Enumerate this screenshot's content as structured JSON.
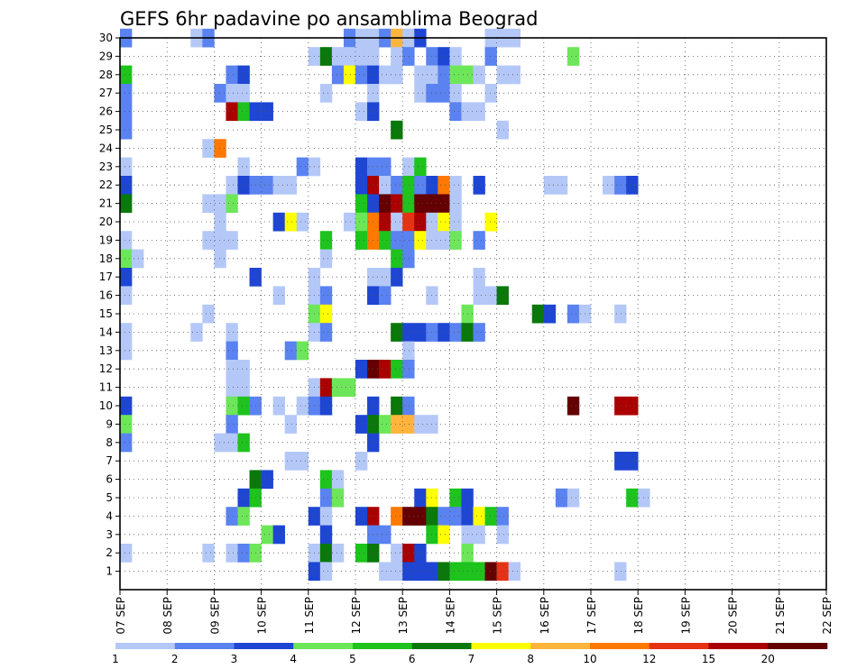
{
  "chart_data": {
    "type": "heatmap",
    "title": "GEFS 6hr padavine po ansamblima Beograd",
    "xlabel": "",
    "ylabel": "",
    "x_tick_labels": [
      "07 SEP",
      "08 SEP",
      "09 SEP",
      "10 SEP",
      "11 SEP",
      "12 SEP",
      "13 SEP",
      "14 SEP",
      "15 SEP",
      "16 SEP",
      "17 SEP",
      "18 SEP",
      "19 SEP",
      "20 SEP",
      "21 SEP",
      "22 SEP"
    ],
    "y_tick_labels": [
      "1",
      "2",
      "3",
      "4",
      "5",
      "6",
      "7",
      "8",
      "9",
      "10",
      "11",
      "12",
      "13",
      "14",
      "15",
      "16",
      "17",
      "18",
      "19",
      "20",
      "21",
      "22",
      "23",
      "24",
      "25",
      "26",
      "27",
      "28",
      "29",
      "30"
    ],
    "ylim": [
      0,
      30
    ],
    "time_steps_per_day": 4,
    "grid": true,
    "legend_position": "bottom",
    "color_levels": [
      {
        "label": "1",
        "color": "#b4c8f8"
      },
      {
        "label": "2",
        "color": "#5a82f0"
      },
      {
        "label": "3",
        "color": "#1e46d2"
      },
      {
        "label": "4",
        "color": "#6ee65a"
      },
      {
        "label": "5",
        "color": "#1ec31e"
      },
      {
        "label": "6",
        "color": "#0a780a"
      },
      {
        "label": "7",
        "color": "#ffff00"
      },
      {
        "label": "8",
        "color": "#ffb43c"
      },
      {
        "label": "10",
        "color": "#ff7800"
      },
      {
        "label": "12",
        "color": "#e63214"
      },
      {
        "label": "15",
        "color": "#aa0000"
      },
      {
        "label": "20",
        "color": "#640000"
      }
    ],
    "cells_note": "each cell: [time step index from 07 SEP 00z (6 h per step), member 0-30, color level index 0-11]",
    "cells": [
      [
        0,
        30,
        1
      ],
      [
        6,
        30,
        0
      ],
      [
        7,
        30,
        1
      ],
      [
        19,
        30,
        1
      ],
      [
        20,
        30,
        0
      ],
      [
        21,
        30,
        0
      ],
      [
        22,
        30,
        1
      ],
      [
        23,
        30,
        7
      ],
      [
        24,
        30,
        0
      ],
      [
        25,
        30,
        2
      ],
      [
        31,
        30,
        0
      ],
      [
        32,
        30,
        0
      ],
      [
        33,
        30,
        0
      ],
      [
        16,
        29,
        0
      ],
      [
        17,
        29,
        5
      ],
      [
        18,
        29,
        0
      ],
      [
        19,
        29,
        0
      ],
      [
        20,
        29,
        0
      ],
      [
        21,
        29,
        0
      ],
      [
        23,
        29,
        0
      ],
      [
        24,
        29,
        1
      ],
      [
        26,
        29,
        1
      ],
      [
        27,
        29,
        2
      ],
      [
        28,
        29,
        0
      ],
      [
        31,
        29,
        1
      ],
      [
        38,
        29,
        3
      ],
      [
        0,
        28,
        4
      ],
      [
        9,
        28,
        1
      ],
      [
        10,
        28,
        2
      ],
      [
        18,
        28,
        1
      ],
      [
        19,
        28,
        6
      ],
      [
        20,
        28,
        1
      ],
      [
        21,
        28,
        2
      ],
      [
        22,
        28,
        0
      ],
      [
        23,
        28,
        0
      ],
      [
        25,
        28,
        0
      ],
      [
        26,
        28,
        0
      ],
      [
        27,
        28,
        1
      ],
      [
        28,
        28,
        3
      ],
      [
        29,
        28,
        3
      ],
      [
        30,
        28,
        0
      ],
      [
        32,
        28,
        0
      ],
      [
        33,
        28,
        0
      ],
      [
        0,
        27,
        1
      ],
      [
        8,
        27,
        1
      ],
      [
        9,
        27,
        0
      ],
      [
        10,
        27,
        0
      ],
      [
        17,
        27,
        0
      ],
      [
        21,
        27,
        0
      ],
      [
        25,
        27,
        0
      ],
      [
        26,
        27,
        1
      ],
      [
        27,
        27,
        1
      ],
      [
        28,
        27,
        0
      ],
      [
        31,
        27,
        0
      ],
      [
        0,
        26,
        1
      ],
      [
        9,
        26,
        10
      ],
      [
        10,
        26,
        4
      ],
      [
        11,
        26,
        2
      ],
      [
        12,
        26,
        2
      ],
      [
        20,
        26,
        0
      ],
      [
        21,
        26,
        2
      ],
      [
        28,
        26,
        1
      ],
      [
        29,
        26,
        0
      ],
      [
        30,
        26,
        0
      ],
      [
        0,
        25,
        1
      ],
      [
        23,
        25,
        5
      ],
      [
        32,
        25,
        0
      ],
      [
        7,
        24,
        0
      ],
      [
        8,
        24,
        8
      ],
      [
        0,
        23,
        0
      ],
      [
        10,
        23,
        0
      ],
      [
        15,
        23,
        1
      ],
      [
        16,
        23,
        0
      ],
      [
        20,
        23,
        2
      ],
      [
        21,
        23,
        1
      ],
      [
        22,
        23,
        1
      ],
      [
        24,
        23,
        0
      ],
      [
        25,
        23,
        4
      ],
      [
        0,
        22,
        2
      ],
      [
        9,
        22,
        0
      ],
      [
        10,
        22,
        2
      ],
      [
        11,
        22,
        1
      ],
      [
        12,
        22,
        1
      ],
      [
        13,
        22,
        0
      ],
      [
        14,
        22,
        0
      ],
      [
        20,
        22,
        2
      ],
      [
        21,
        22,
        10
      ],
      [
        22,
        22,
        0
      ],
      [
        23,
        22,
        1
      ],
      [
        24,
        22,
        4
      ],
      [
        25,
        22,
        1
      ],
      [
        26,
        22,
        2
      ],
      [
        27,
        22,
        8
      ],
      [
        28,
        22,
        0
      ],
      [
        30,
        22,
        2
      ],
      [
        36,
        22,
        0
      ],
      [
        37,
        22,
        0
      ],
      [
        41,
        22,
        0
      ],
      [
        42,
        22,
        1
      ],
      [
        43,
        22,
        2
      ],
      [
        0,
        21,
        5
      ],
      [
        7,
        21,
        0
      ],
      [
        8,
        21,
        0
      ],
      [
        9,
        21,
        3
      ],
      [
        20,
        21,
        4
      ],
      [
        21,
        21,
        2
      ],
      [
        22,
        21,
        11
      ],
      [
        23,
        21,
        10
      ],
      [
        24,
        21,
        4
      ],
      [
        25,
        21,
        11
      ],
      [
        26,
        21,
        11
      ],
      [
        27,
        21,
        11
      ],
      [
        28,
        21,
        0
      ],
      [
        8,
        20,
        0
      ],
      [
        13,
        20,
        2
      ],
      [
        14,
        20,
        6
      ],
      [
        15,
        20,
        0
      ],
      [
        19,
        20,
        0
      ],
      [
        20,
        20,
        3
      ],
      [
        21,
        20,
        8
      ],
      [
        22,
        20,
        10
      ],
      [
        23,
        20,
        0
      ],
      [
        24,
        20,
        9
      ],
      [
        25,
        20,
        10
      ],
      [
        26,
        20,
        0
      ],
      [
        27,
        20,
        6
      ],
      [
        28,
        20,
        0
      ],
      [
        31,
        20,
        6
      ],
      [
        0,
        19,
        0
      ],
      [
        7,
        19,
        0
      ],
      [
        8,
        19,
        0
      ],
      [
        9,
        19,
        0
      ],
      [
        17,
        19,
        4
      ],
      [
        20,
        19,
        4
      ],
      [
        21,
        19,
        8
      ],
      [
        22,
        19,
        4
      ],
      [
        23,
        19,
        1
      ],
      [
        24,
        19,
        1
      ],
      [
        25,
        19,
        6
      ],
      [
        26,
        19,
        0
      ],
      [
        27,
        19,
        0
      ],
      [
        28,
        19,
        3
      ],
      [
        30,
        19,
        1
      ],
      [
        0,
        18,
        3
      ],
      [
        1,
        18,
        0
      ],
      [
        8,
        18,
        0
      ],
      [
        17,
        18,
        0
      ],
      [
        23,
        18,
        4
      ],
      [
        24,
        18,
        1
      ],
      [
        0,
        17,
        2
      ],
      [
        11,
        17,
        2
      ],
      [
        16,
        17,
        0
      ],
      [
        21,
        17,
        0
      ],
      [
        22,
        17,
        0
      ],
      [
        23,
        17,
        2
      ],
      [
        30,
        17,
        0
      ],
      [
        0,
        16,
        0
      ],
      [
        13,
        16,
        0
      ],
      [
        16,
        16,
        0
      ],
      [
        17,
        16,
        1
      ],
      [
        21,
        16,
        2
      ],
      [
        22,
        16,
        1
      ],
      [
        26,
        16,
        0
      ],
      [
        30,
        16,
        0
      ],
      [
        31,
        16,
        0
      ],
      [
        32,
        16,
        5
      ],
      [
        7,
        15,
        0
      ],
      [
        16,
        15,
        3
      ],
      [
        17,
        15,
        6
      ],
      [
        29,
        15,
        3
      ],
      [
        35,
        15,
        5
      ],
      [
        36,
        15,
        2
      ],
      [
        38,
        15,
        1
      ],
      [
        39,
        15,
        0
      ],
      [
        42,
        15,
        0
      ],
      [
        0,
        14,
        0
      ],
      [
        6,
        14,
        0
      ],
      [
        9,
        14,
        0
      ],
      [
        16,
        14,
        0
      ],
      [
        17,
        14,
        1
      ],
      [
        23,
        14,
        5
      ],
      [
        24,
        14,
        2
      ],
      [
        25,
        14,
        2
      ],
      [
        26,
        14,
        1
      ],
      [
        27,
        14,
        2
      ],
      [
        28,
        14,
        1
      ],
      [
        29,
        14,
        5
      ],
      [
        30,
        14,
        1
      ],
      [
        0,
        13,
        0
      ],
      [
        9,
        13,
        1
      ],
      [
        14,
        13,
        1
      ],
      [
        15,
        13,
        3
      ],
      [
        24,
        13,
        0
      ],
      [
        9,
        12,
        0
      ],
      [
        10,
        12,
        0
      ],
      [
        20,
        12,
        2
      ],
      [
        21,
        12,
        11
      ],
      [
        22,
        12,
        10
      ],
      [
        23,
        12,
        4
      ],
      [
        24,
        12,
        1
      ],
      [
        9,
        11,
        0
      ],
      [
        10,
        11,
        0
      ],
      [
        16,
        11,
        0
      ],
      [
        17,
        11,
        10
      ],
      [
        18,
        11,
        3
      ],
      [
        19,
        11,
        3
      ],
      [
        0,
        10,
        2
      ],
      [
        9,
        10,
        3
      ],
      [
        10,
        10,
        4
      ],
      [
        11,
        10,
        1
      ],
      [
        13,
        10,
        0
      ],
      [
        15,
        10,
        0
      ],
      [
        16,
        10,
        1
      ],
      [
        17,
        10,
        2
      ],
      [
        21,
        10,
        2
      ],
      [
        23,
        10,
        5
      ],
      [
        24,
        10,
        1
      ],
      [
        38,
        10,
        11
      ],
      [
        42,
        10,
        10
      ],
      [
        43,
        10,
        10
      ],
      [
        0,
        9,
        3
      ],
      [
        9,
        9,
        1
      ],
      [
        14,
        9,
        0
      ],
      [
        20,
        9,
        2
      ],
      [
        21,
        9,
        5
      ],
      [
        22,
        9,
        3
      ],
      [
        23,
        9,
        7
      ],
      [
        24,
        9,
        7
      ],
      [
        25,
        9,
        0
      ],
      [
        26,
        9,
        0
      ],
      [
        0,
        8,
        1
      ],
      [
        8,
        8,
        0
      ],
      [
        9,
        8,
        0
      ],
      [
        10,
        8,
        4
      ],
      [
        21,
        8,
        2
      ],
      [
        14,
        7,
        0
      ],
      [
        15,
        7,
        0
      ],
      [
        20,
        7,
        0
      ],
      [
        42,
        7,
        2
      ],
      [
        43,
        7,
        2
      ],
      [
        11,
        6,
        5
      ],
      [
        12,
        6,
        2
      ],
      [
        17,
        6,
        4
      ],
      [
        18,
        6,
        0
      ],
      [
        10,
        5,
        2
      ],
      [
        11,
        5,
        4
      ],
      [
        17,
        5,
        1
      ],
      [
        18,
        5,
        3
      ],
      [
        25,
        5,
        2
      ],
      [
        26,
        5,
        6
      ],
      [
        28,
        5,
        4
      ],
      [
        29,
        5,
        2
      ],
      [
        37,
        5,
        1
      ],
      [
        38,
        5,
        0
      ],
      [
        43,
        5,
        4
      ],
      [
        44,
        5,
        0
      ],
      [
        9,
        4,
        1
      ],
      [
        10,
        4,
        3
      ],
      [
        16,
        4,
        2
      ],
      [
        17,
        4,
        0
      ],
      [
        20,
        4,
        2
      ],
      [
        21,
        4,
        10
      ],
      [
        23,
        4,
        8
      ],
      [
        24,
        4,
        11
      ],
      [
        25,
        4,
        11
      ],
      [
        26,
        4,
        5
      ],
      [
        27,
        4,
        1
      ],
      [
        28,
        4,
        1
      ],
      [
        29,
        4,
        2
      ],
      [
        30,
        4,
        6
      ],
      [
        31,
        4,
        4
      ],
      [
        32,
        4,
        1
      ],
      [
        12,
        3,
        3
      ],
      [
        13,
        3,
        2
      ],
      [
        17,
        3,
        2
      ],
      [
        21,
        3,
        1
      ],
      [
        22,
        3,
        1
      ],
      [
        26,
        3,
        4
      ],
      [
        27,
        3,
        6
      ],
      [
        29,
        3,
        0
      ],
      [
        30,
        3,
        0
      ],
      [
        32,
        3,
        0
      ],
      [
        0,
        2,
        0
      ],
      [
        7,
        2,
        0
      ],
      [
        9,
        2,
        0
      ],
      [
        10,
        2,
        1
      ],
      [
        11,
        2,
        3
      ],
      [
        16,
        2,
        0
      ],
      [
        17,
        2,
        5
      ],
      [
        18,
        2,
        0
      ],
      [
        20,
        2,
        4
      ],
      [
        21,
        2,
        5
      ],
      [
        23,
        2,
        0
      ],
      [
        24,
        2,
        10
      ],
      [
        25,
        2,
        2
      ],
      [
        29,
        2,
        3
      ],
      [
        16,
        1,
        2
      ],
      [
        17,
        1,
        0
      ],
      [
        22,
        1,
        0
      ],
      [
        23,
        1,
        0
      ],
      [
        24,
        1,
        2
      ],
      [
        25,
        1,
        2
      ],
      [
        26,
        1,
        2
      ],
      [
        27,
        1,
        5
      ],
      [
        28,
        1,
        4
      ],
      [
        29,
        1,
        4
      ],
      [
        30,
        1,
        4
      ],
      [
        31,
        1,
        11
      ],
      [
        32,
        1,
        9
      ],
      [
        33,
        1,
        0
      ],
      [
        42,
        1,
        0
      ]
    ]
  }
}
